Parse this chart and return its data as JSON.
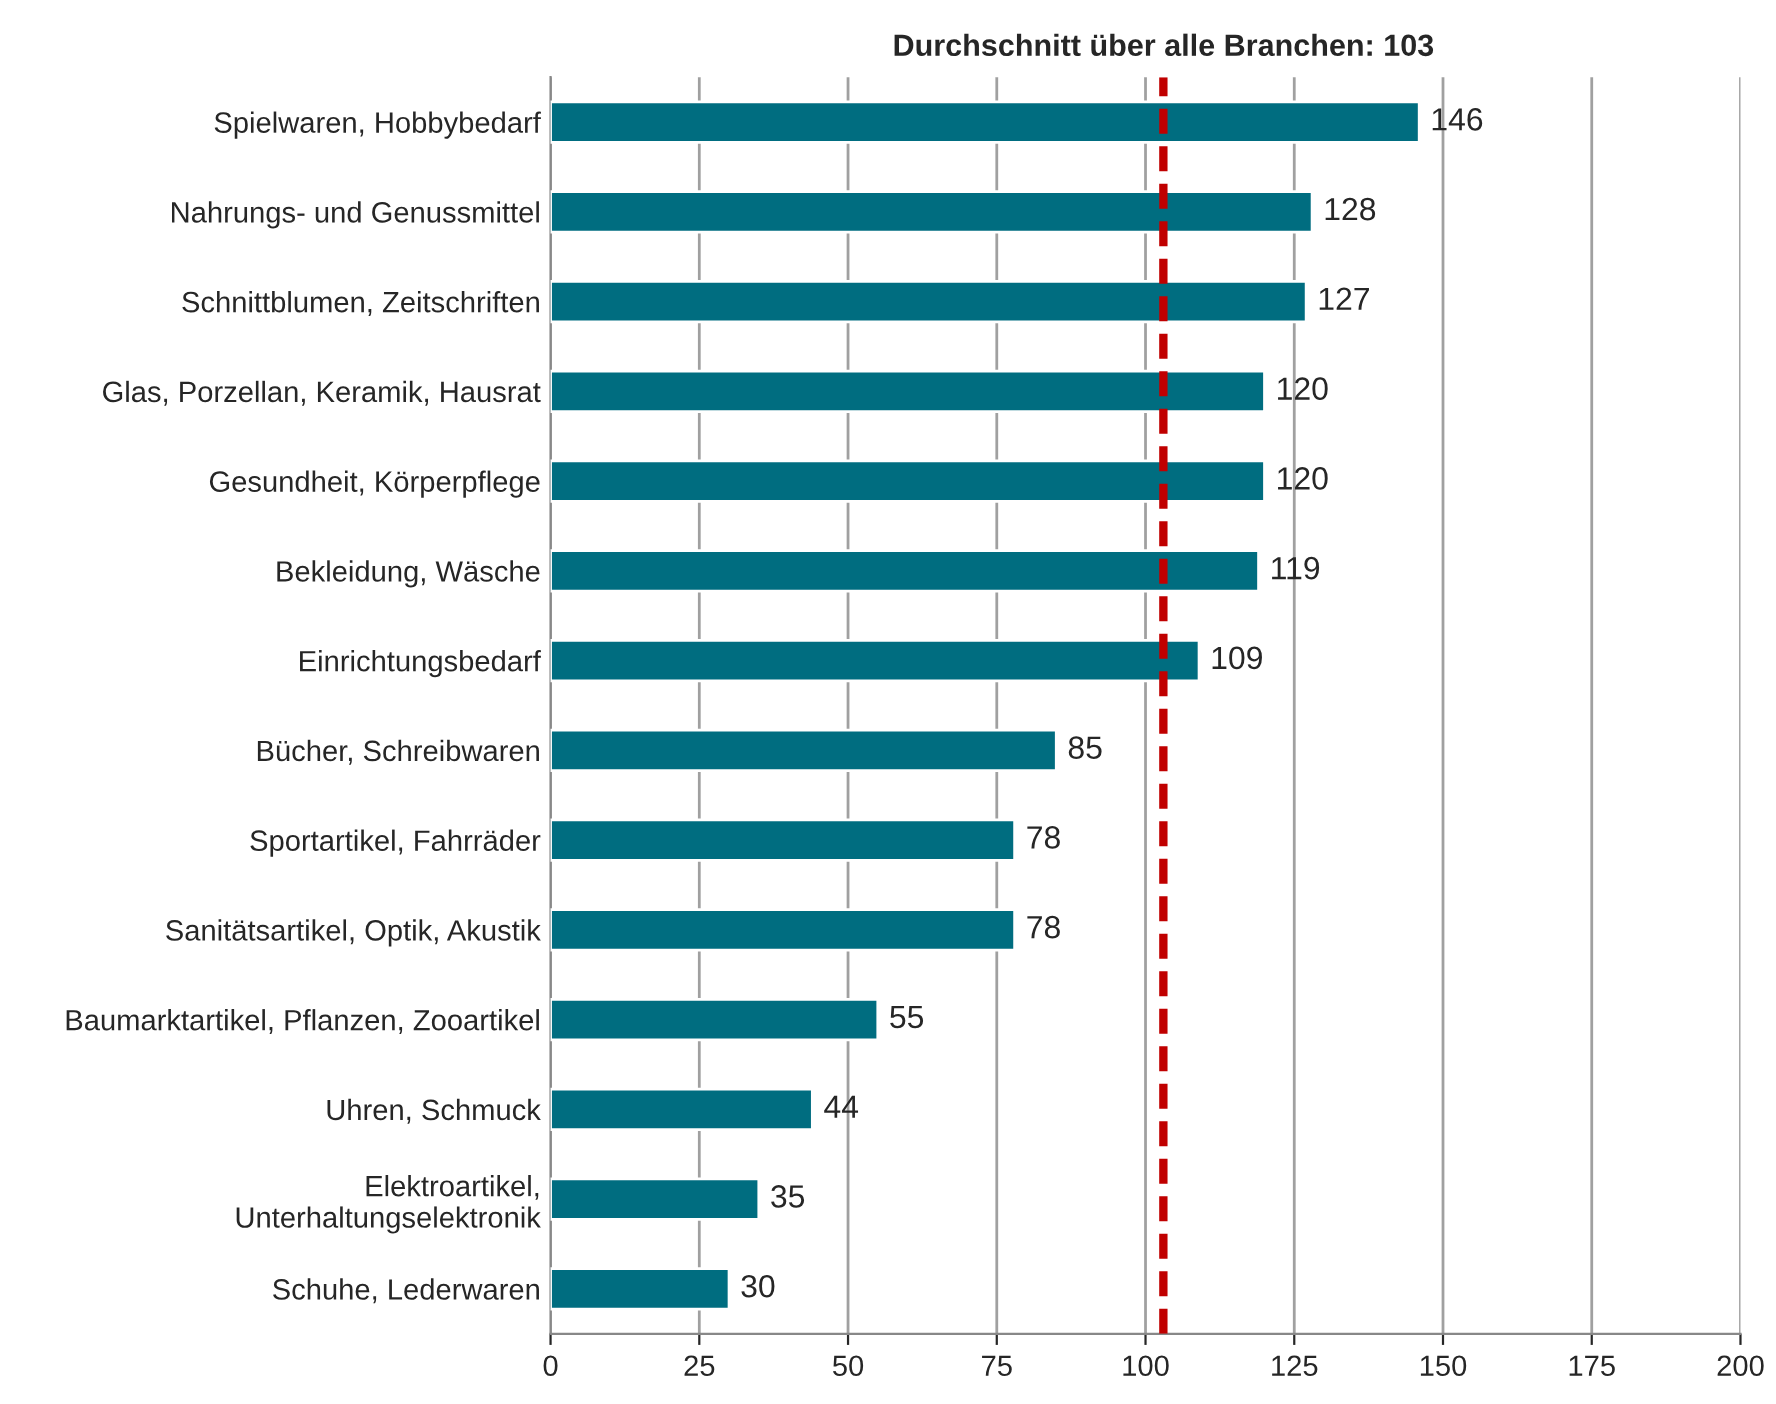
{
  "chart_data": {
    "type": "bar",
    "orientation": "horizontal",
    "categories": [
      "Spielwaren, Hobbybedarf",
      "Nahrungs- und Genussmittel",
      "Schnittblumen, Zeitschriften",
      "Glas, Porzellan, Keramik, Hausrat",
      "Gesundheit, Körperpflege",
      "Bekleidung, Wäsche",
      "Einrichtungsbedarf",
      "Bücher, Schreibwaren",
      "Sportartikel, Fahrräder",
      "Sanitätsartikel, Optik, Akustik",
      "Baumarktartikel, Pflanzen, Zooartikel",
      "Uhren, Schmuck",
      "Elektroartikel,\nUnterhaltungselektronik",
      "Schuhe, Lederwaren"
    ],
    "values": [
      146,
      128,
      127,
      120,
      120,
      119,
      109,
      85,
      78,
      78,
      55,
      44,
      35,
      30
    ],
    "color": "#006d80",
    "data_labels": true,
    "xlim": [
      0,
      200
    ],
    "xticks": [
      0,
      25,
      50,
      75,
      100,
      125,
      150,
      175,
      200
    ],
    "grid": "x",
    "ref_lines": [
      {
        "axis": "x",
        "value": 103,
        "label": "Durchschnitt über alle Branchen: 103",
        "color": "#c00000",
        "line_style": "dashed"
      }
    ]
  }
}
